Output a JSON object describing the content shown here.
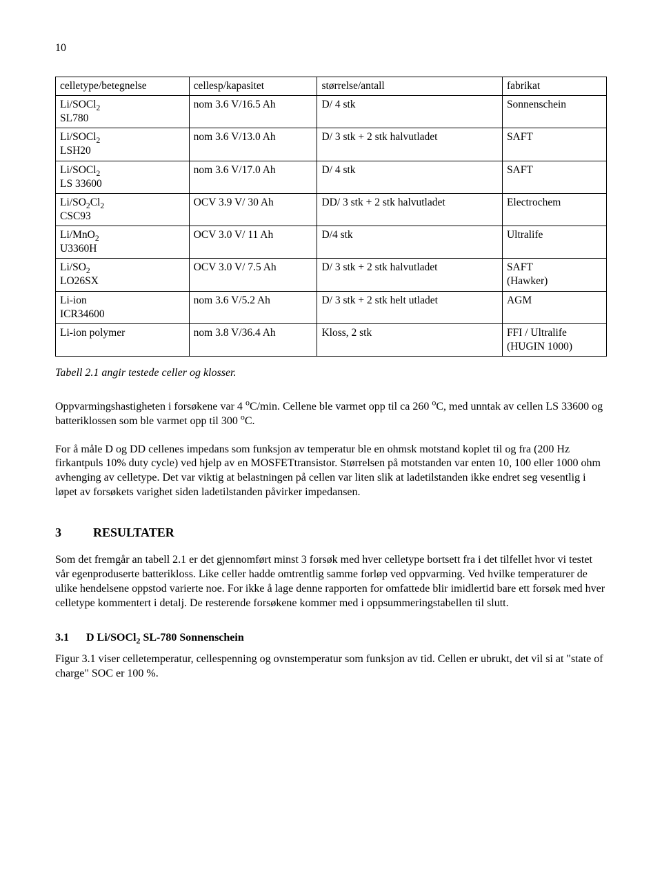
{
  "pageNumber": "10",
  "table": {
    "columns": [
      "celletype/betegnelse",
      "cellesp/kapasitet",
      "størrelse/antall",
      "fabrikat"
    ],
    "rows": [
      [
        "Li/SOCl<sub>2</sub><br>SL780",
        "nom 3.6 V/16.5 Ah",
        "D/ 4 stk",
        "Sonnenschein"
      ],
      [
        "Li/SOCl<sub>2</sub><br>LSH20",
        "nom 3.6 V/13.0 Ah",
        "D/ 3 stk + 2 stk halvutladet",
        "SAFT"
      ],
      [
        "Li/SOCl<sub>2</sub><br>LS 33600",
        "nom 3.6 V/17.0 Ah",
        "D/ 4 stk",
        "SAFT"
      ],
      [
        "Li/SO<sub>2</sub>Cl<sub>2</sub><br>CSC93",
        "OCV 3.9 V/ 30 Ah",
        "DD/ 3 stk + 2 stk halvutladet",
        "Electrochem"
      ],
      [
        "Li/MnO<sub>2</sub><br>U3360H",
        "OCV 3.0 V/ 11 Ah",
        "D/4 stk",
        "Ultralife"
      ],
      [
        "Li/SO<sub>2</sub><br>LO26SX",
        "OCV 3.0 V/ 7.5 Ah",
        "D/ 3 stk + 2 stk halvutladet",
        "SAFT<br>(Hawker)"
      ],
      [
        "Li-ion<br>ICR34600",
        "nom 3.6 V/5.2 Ah",
        "D/ 3 stk + 2 stk helt utladet",
        "AGM"
      ],
      [
        "Li-ion polymer",
        "nom 3.8 V/36.4 Ah",
        "Kloss, 2 stk",
        "FFI / Ultralife<br>(HUGIN 1000)"
      ]
    ]
  },
  "caption": "Tabell 2.1 angir testede celler og klosser.",
  "para1": "Oppvarmingshastigheten i forsøkene var 4 <sup>o</sup>C/min.  Cellene ble varmet opp til ca 260 <sup>o</sup>C, med unntak av cellen LS 33600 og batteriklossen som ble varmet opp til 300 <sup>o</sup>C.",
  "para2": "For å måle D og DD cellenes impedans som funksjon av temperatur ble en ohmsk motstand koplet til og fra (200 Hz firkantpuls 10% duty cycle) ved hjelp av en MOSFETtransistor. Størrelsen på motstanden var enten 10, 100 eller 1000 ohm avhenging av celletype. Det var viktig at belastningen på cellen var liten slik at ladetilstanden ikke endret seg vesentlig i løpet av forsøkets varighet siden ladetilstanden påvirker impedansen.",
  "section3": {
    "num": "3",
    "title": "RESULTATER"
  },
  "para3": "Som det fremgår an tabell 2.1 er det gjennomført minst 3 forsøk med hver celletype bortsett fra i det tilfellet hvor vi testet vår egenproduserte batterikloss. Like celler hadde omtrentlig samme forløp ved oppvarming. Ved hvilke temperaturer de ulike hendelsene oppstod varierte noe. For ikke å lage denne rapporten for omfattede blir imidlertid bare ett forsøk med hver celletype kommentert i detalj.  De resterende forsøkene kommer med i oppsummeringstabellen til slutt.",
  "section31": {
    "num": "3.1",
    "title": "D Li/SOCl<sub>2</sub> SL-780 Sonnenschein"
  },
  "para4": "Figur 3.1 viser celletemperatur, cellespenning og ovnstemperatur som funksjon av tid. Cellen er ubrukt, det vil si at \"state of charge\" SOC er 100 %."
}
